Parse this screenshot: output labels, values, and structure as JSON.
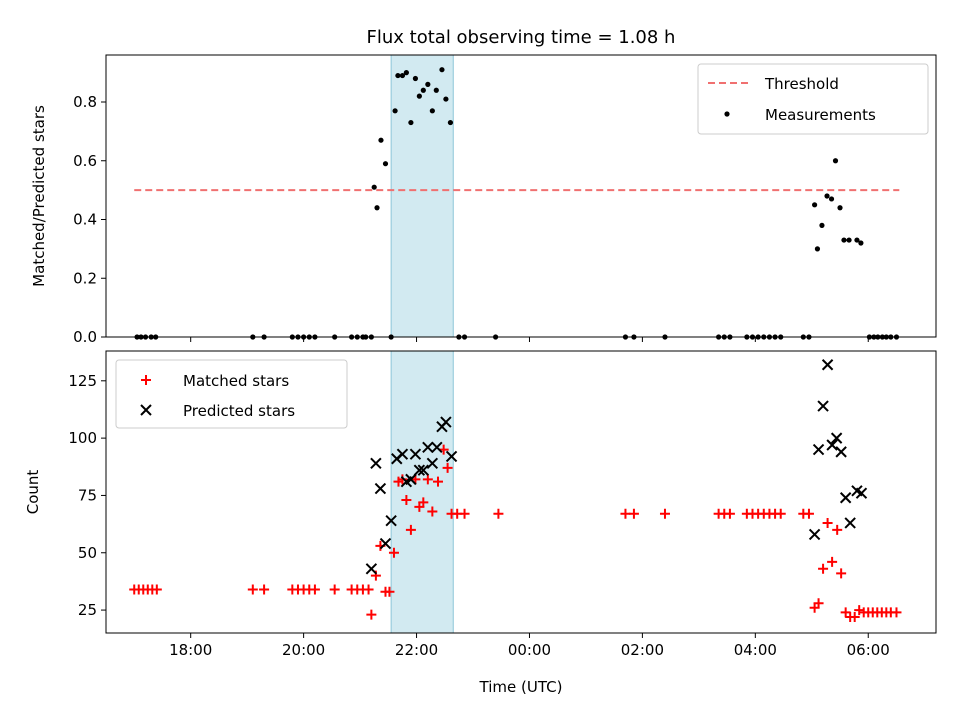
{
  "chart_data": {
    "title": "Flux total observing time = 1.08 h",
    "xlabel": "Time (UTC)",
    "x_ticks": [
      {
        "t": 18,
        "label": "18:00"
      },
      {
        "t": 20,
        "label": "20:00"
      },
      {
        "t": 22,
        "label": "22:00"
      },
      {
        "t": 24,
        "label": "00:00"
      },
      {
        "t": 26,
        "label": "02:00"
      },
      {
        "t": 28,
        "label": "04:00"
      },
      {
        "t": 30,
        "label": "06:00"
      }
    ],
    "xlim": [
      16.5,
      31.2
    ],
    "highlight_span": [
      21.55,
      22.65
    ],
    "panels": [
      {
        "type": "scatter",
        "ylabel": "Matched/Predicted stars",
        "ylim": [
          0,
          0.96
        ],
        "y_ticks": [
          0,
          0.2,
          0.4,
          0.6,
          0.8
        ],
        "y_tick_labels": [
          "0.0",
          "0.2",
          "0.4",
          "0.6",
          "0.8"
        ],
        "threshold": {
          "name": "Threshold",
          "value": 0.5,
          "x_start": 17.0,
          "x_end": 30.55,
          "color": "#f07070"
        },
        "legend": [
          "Threshold",
          "Measurements"
        ],
        "legend_position": "top-right",
        "series": [
          {
            "name": "Measurements",
            "color": "#000000",
            "points": [
              [
                17.05,
                0.0
              ],
              [
                17.12,
                0.0
              ],
              [
                17.2,
                0.0
              ],
              [
                17.3,
                0.0
              ],
              [
                17.38,
                0.0
              ],
              [
                19.1,
                0.0
              ],
              [
                19.3,
                0.0
              ],
              [
                19.8,
                0.0
              ],
              [
                19.9,
                0.0
              ],
              [
                20.0,
                0.0
              ],
              [
                20.1,
                0.0
              ],
              [
                20.2,
                0.0
              ],
              [
                20.55,
                0.0
              ],
              [
                20.85,
                0.0
              ],
              [
                20.95,
                0.0
              ],
              [
                21.05,
                0.0
              ],
              [
                21.1,
                0.0
              ],
              [
                21.2,
                0.0
              ],
              [
                21.25,
                0.51
              ],
              [
                21.3,
                0.44
              ],
              [
                21.37,
                0.67
              ],
              [
                21.45,
                0.59
              ],
              [
                21.55,
                0.0
              ],
              [
                21.62,
                0.77
              ],
              [
                21.67,
                0.89
              ],
              [
                21.75,
                0.89
              ],
              [
                21.82,
                0.9
              ],
              [
                21.9,
                0.73
              ],
              [
                21.98,
                0.88
              ],
              [
                22.05,
                0.82
              ],
              [
                22.12,
                0.84
              ],
              [
                22.2,
                0.86
              ],
              [
                22.28,
                0.77
              ],
              [
                22.35,
                0.84
              ],
              [
                22.45,
                0.91
              ],
              [
                22.52,
                0.81
              ],
              [
                22.6,
                0.73
              ],
              [
                22.75,
                0.0
              ],
              [
                22.85,
                0.0
              ],
              [
                23.4,
                0.0
              ],
              [
                25.7,
                0.0
              ],
              [
                25.85,
                0.0
              ],
              [
                26.4,
                0.0
              ],
              [
                27.35,
                0.0
              ],
              [
                27.45,
                0.0
              ],
              [
                27.55,
                0.0
              ],
              [
                27.85,
                0.0
              ],
              [
                27.95,
                0.0
              ],
              [
                28.05,
                0.0
              ],
              [
                28.15,
                0.0
              ],
              [
                28.25,
                0.0
              ],
              [
                28.35,
                0.0
              ],
              [
                28.45,
                0.0
              ],
              [
                28.85,
                0.0
              ],
              [
                28.95,
                0.0
              ],
              [
                29.05,
                0.45
              ],
              [
                29.1,
                0.3
              ],
              [
                29.18,
                0.38
              ],
              [
                29.27,
                0.48
              ],
              [
                29.35,
                0.47
              ],
              [
                29.42,
                0.6
              ],
              [
                29.5,
                0.44
              ],
              [
                29.57,
                0.33
              ],
              [
                29.66,
                0.33
              ],
              [
                29.8,
                0.33
              ],
              [
                29.87,
                0.32
              ],
              [
                30.02,
                0.0
              ],
              [
                30.1,
                0.0
              ],
              [
                30.17,
                0.0
              ],
              [
                30.25,
                0.0
              ],
              [
                30.32,
                0.0
              ],
              [
                30.4,
                0.0
              ],
              [
                30.5,
                0.0
              ]
            ]
          }
        ]
      },
      {
        "type": "scatter",
        "ylabel": "Count",
        "ylim": [
          15,
          138
        ],
        "y_ticks": [
          25,
          50,
          75,
          100,
          125
        ],
        "y_tick_labels": [
          "25",
          "50",
          "75",
          "100",
          "125"
        ],
        "legend": [
          "Matched stars",
          "Predicted stars"
        ],
        "legend_position": "top-left",
        "series": [
          {
            "name": "Matched stars",
            "marker": "plus",
            "color": "#ff0000",
            "points": [
              [
                17.0,
                34
              ],
              [
                17.08,
                34
              ],
              [
                17.16,
                34
              ],
              [
                17.24,
                34
              ],
              [
                17.32,
                34
              ],
              [
                17.4,
                34
              ],
              [
                19.1,
                34
              ],
              [
                19.3,
                34
              ],
              [
                19.8,
                34
              ],
              [
                19.9,
                34
              ],
              [
                20.0,
                34
              ],
              [
                20.1,
                34
              ],
              [
                20.2,
                34
              ],
              [
                20.55,
                34
              ],
              [
                20.85,
                34
              ],
              [
                20.95,
                34
              ],
              [
                21.05,
                34
              ],
              [
                21.15,
                34
              ],
              [
                21.2,
                23
              ],
              [
                21.28,
                40
              ],
              [
                21.36,
                53
              ],
              [
                21.45,
                33
              ],
              [
                21.52,
                33
              ],
              [
                21.6,
                50
              ],
              [
                21.68,
                81
              ],
              [
                21.75,
                82
              ],
              [
                21.82,
                73
              ],
              [
                21.9,
                60
              ],
              [
                21.98,
                82
              ],
              [
                22.05,
                70
              ],
              [
                22.12,
                72
              ],
              [
                22.2,
                82
              ],
              [
                22.28,
                68
              ],
              [
                22.38,
                81
              ],
              [
                22.48,
                95
              ],
              [
                22.55,
                87
              ],
              [
                22.62,
                67
              ],
              [
                22.72,
                67
              ],
              [
                22.85,
                67
              ],
              [
                23.45,
                67
              ],
              [
                25.7,
                67
              ],
              [
                25.85,
                67
              ],
              [
                26.4,
                67
              ],
              [
                27.35,
                67
              ],
              [
                27.45,
                67
              ],
              [
                27.55,
                67
              ],
              [
                27.85,
                67
              ],
              [
                27.95,
                67
              ],
              [
                28.05,
                67
              ],
              [
                28.15,
                67
              ],
              [
                28.25,
                67
              ],
              [
                28.35,
                67
              ],
              [
                28.45,
                67
              ],
              [
                28.85,
                67
              ],
              [
                28.95,
                67
              ],
              [
                29.05,
                26
              ],
              [
                29.12,
                28
              ],
              [
                29.2,
                43
              ],
              [
                29.28,
                63
              ],
              [
                29.36,
                46
              ],
              [
                29.45,
                60
              ],
              [
                29.52,
                41
              ],
              [
                29.6,
                24
              ],
              [
                29.68,
                22
              ],
              [
                29.76,
                22
              ],
              [
                29.84,
                25
              ],
              [
                29.92,
                24
              ],
              [
                30.0,
                24
              ],
              [
                30.08,
                24
              ],
              [
                30.16,
                24
              ],
              [
                30.24,
                24
              ],
              [
                30.32,
                24
              ],
              [
                30.4,
                24
              ],
              [
                30.5,
                24
              ]
            ]
          },
          {
            "name": "Predicted stars",
            "marker": "x",
            "color": "#000000",
            "points": [
              [
                21.2,
                43
              ],
              [
                21.28,
                89
              ],
              [
                21.36,
                78
              ],
              [
                21.45,
                54
              ],
              [
                21.55,
                64
              ],
              [
                21.65,
                91
              ],
              [
                21.75,
                93
              ],
              [
                21.82,
                81
              ],
              [
                21.9,
                82
              ],
              [
                21.98,
                93
              ],
              [
                22.05,
                86
              ],
              [
                22.12,
                86
              ],
              [
                22.2,
                96
              ],
              [
                22.28,
                89
              ],
              [
                22.36,
                96
              ],
              [
                22.45,
                105
              ],
              [
                22.52,
                107
              ],
              [
                22.62,
                92
              ],
              [
                29.05,
                58
              ],
              [
                29.12,
                95
              ],
              [
                29.2,
                114
              ],
              [
                29.28,
                132
              ],
              [
                29.36,
                97
              ],
              [
                29.44,
                100
              ],
              [
                29.52,
                94
              ],
              [
                29.6,
                74
              ],
              [
                29.68,
                63
              ],
              [
                29.8,
                77
              ],
              [
                29.88,
                76
              ]
            ]
          }
        ]
      }
    ]
  }
}
